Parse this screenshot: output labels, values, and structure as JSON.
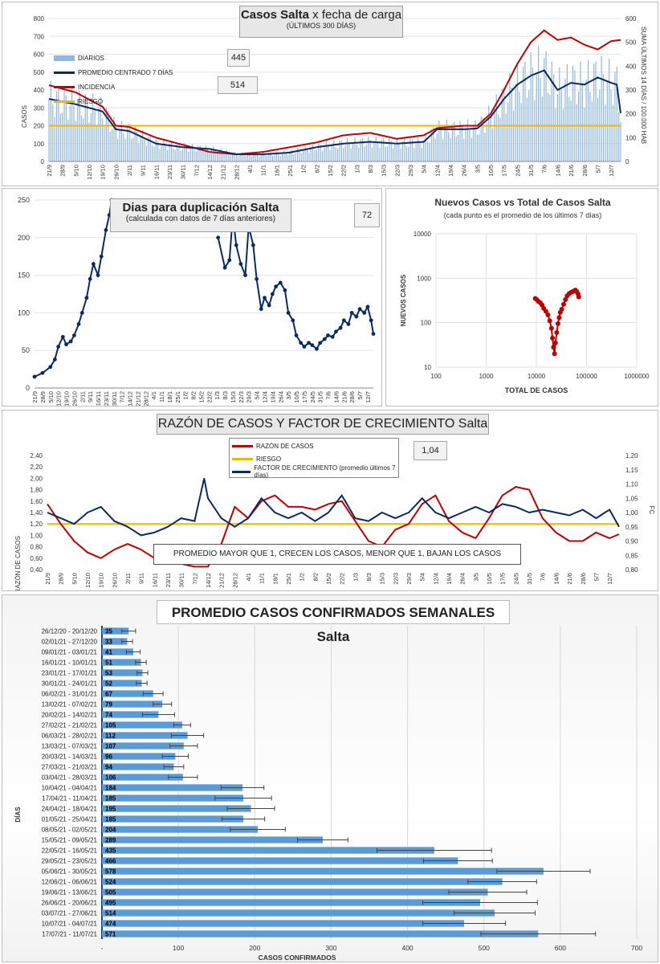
{
  "colors": {
    "bar_blue": "#8fb7e2",
    "navy": "#0b2a63",
    "red": "#c00000",
    "risk_yellow": "#f2b600",
    "week_bar": "#5b9bd5"
  },
  "daily": {
    "title_bold": "Casos Salta",
    "title_rest": "x fecha de carga",
    "subtitle": "(ÚLTIMOS 300 DÍAS)",
    "ylabel_left": "CASOS",
    "ylabel_right": "SUMA ÚLTIMOS 14 DÍAS / 100.000 HAB",
    "value_box_1": "445",
    "value_box_2": "514",
    "legend": [
      "DIARIOS",
      "PROMEDIO CENTRADO 7 DÍAS",
      "INCIDENCIA",
      "RIESGO"
    ],
    "left_ticks": [
      "0",
      "100",
      "200",
      "300",
      "400",
      "500",
      "600",
      "700",
      "800"
    ],
    "right_ticks": [
      "0",
      "100",
      "200",
      "300",
      "400",
      "500",
      "600"
    ],
    "x_ticks": [
      "21/9",
      "28/9",
      "5/10",
      "12/10",
      "19/10",
      "26/10",
      "2/11",
      "9/11",
      "16/11",
      "23/11",
      "30/11",
      "7/12",
      "14/12",
      "21/12",
      "28/12",
      "4/1",
      "11/1",
      "18/1",
      "25/1",
      "1/2",
      "8/2",
      "15/2",
      "22/2",
      "1/3",
      "8/3",
      "15/3",
      "22/3",
      "29/3",
      "5/4",
      "12/4",
      "19/4",
      "26/4",
      "3/5",
      "10/5",
      "17/5",
      "24/5",
      "31/5",
      "7/6",
      "14/6",
      "21/6",
      "28/6",
      "5/7",
      "12/7"
    ],
    "chart_data": {
      "type": "bar",
      "x_start": "21/9",
      "x_end": "17/7",
      "ylim_left": [
        0,
        800
      ],
      "ylim_right": [
        0,
        600
      ],
      "risk_level": 200,
      "avg_anchor_dates": [
        "21/9",
        "5/10",
        "19/10",
        "26/10",
        "2/11",
        "16/11",
        "30/11",
        "14/12",
        "28/12",
        "11/1",
        "25/1",
        "8/2",
        "22/2",
        "8/3",
        "22/3",
        "5/4",
        "12/4",
        "26/4",
        "3/5",
        "10/5",
        "17/5",
        "24/5",
        "31/5",
        "7/6",
        "14/6",
        "21/6",
        "28/6",
        "5/7",
        "12/7",
        "15/7",
        "17/7"
      ],
      "avg_anchor_values": [
        350,
        320,
        280,
        180,
        170,
        100,
        80,
        70,
        40,
        40,
        50,
        80,
        100,
        110,
        100,
        110,
        180,
        180,
        185,
        250,
        350,
        430,
        480,
        510,
        400,
        440,
        430,
        470,
        440,
        430,
        270
      ],
      "incidence_anchor_dates": [
        "21/9",
        "5/10",
        "19/10",
        "26/10",
        "2/11",
        "16/11",
        "30/11",
        "14/12",
        "28/12",
        "11/1",
        "25/1",
        "8/2",
        "22/2",
        "8/3",
        "22/3",
        "5/4",
        "12/4",
        "26/4",
        "3/5",
        "10/5",
        "17/5",
        "24/5",
        "31/5",
        "7/6",
        "14/6",
        "21/6",
        "28/6",
        "5/7",
        "12/7",
        "17/7"
      ],
      "incidence_anchor_values": [
        320,
        290,
        230,
        150,
        145,
        100,
        70,
        40,
        30,
        40,
        60,
        80,
        110,
        120,
        95,
        110,
        140,
        150,
        150,
        200,
        300,
        410,
        500,
        550,
        510,
        520,
        490,
        470,
        505,
        510
      ]
    }
  },
  "doubling": {
    "title": "Dias para duplicación Salta",
    "subtitle": "(calculada con datos de 7 días anteriores)",
    "value_box": "72",
    "y_ticks": [
      "0",
      "50",
      "100",
      "150",
      "200",
      "250"
    ],
    "x_ticks": [
      "21/9",
      "28/9",
      "5/10",
      "12/10",
      "19/10",
      "26/10",
      "2/11",
      "9/11",
      "16/11",
      "23/11",
      "30/11",
      "7/12",
      "14/12",
      "21/12",
      "28/12",
      "4/1",
      "11/1",
      "18/1",
      "25/1",
      "1/2",
      "8/2",
      "15/2",
      "22/2",
      "1/3",
      "8/3",
      "15/3",
      "22/3",
      "29/3",
      "5/4",
      "12/4",
      "19/4",
      "26/4",
      "3/5",
      "10/5",
      "17/5",
      "24/5",
      "31/5",
      "7/6",
      "14/6",
      "21/6",
      "28/6",
      "5/7",
      "12/7"
    ],
    "chart_data": {
      "type": "line",
      "ylim": [
        0,
        250
      ],
      "x_start": "21/9",
      "x_end": "17/7",
      "segment_1_dates": [
        "21/9",
        "28/9",
        "5/10",
        "9/10",
        "12/10",
        "16/10",
        "19/10",
        "23/10",
        "26/10",
        "30/10",
        "2/11",
        "6/11",
        "9/11",
        "12/11",
        "16/11",
        "19/11",
        "23/11",
        "26/11",
        "28/11"
      ],
      "segment_1_values": [
        15,
        20,
        28,
        38,
        55,
        68,
        58,
        62,
        70,
        85,
        100,
        120,
        145,
        165,
        150,
        175,
        210,
        230,
        250
      ],
      "segment_2_dates": [
        "2/3",
        "8/3",
        "12/3",
        "15/3",
        "18/3",
        "22/3",
        "26/3",
        "29/3",
        "2/4",
        "5/4",
        "9/4",
        "12/4",
        "16/4",
        "19/4",
        "22/4",
        "26/4",
        "30/4",
        "3/5",
        "7/5",
        "10/5",
        "14/5",
        "17/5",
        "21/5",
        "24/5",
        "28/5",
        "31/5",
        "4/6",
        "7/6",
        "11/6",
        "14/6",
        "18/6",
        "21/6",
        "25/6",
        "28/6",
        "2/7",
        "5/7",
        "9/7",
        "12/7",
        "15/7",
        "17/7"
      ],
      "segment_2_values": [
        200,
        160,
        170,
        230,
        190,
        165,
        150,
        215,
        190,
        145,
        105,
        120,
        110,
        125,
        135,
        140,
        130,
        100,
        90,
        70,
        60,
        55,
        60,
        57,
        52,
        60,
        65,
        70,
        68,
        75,
        80,
        90,
        85,
        100,
        95,
        105,
        100,
        108,
        90,
        72
      ]
    }
  },
  "scatter": {
    "title": "Nuevos Casos vs Total de Casos Salta",
    "subtitle": "(cada punto es el promedio de los últimos 7 días)",
    "ylabel": "NUEVOS CASOS",
    "xlabel": "TOTAL DE CASOS",
    "x_ticks": [
      "100",
      "1000",
      "10000",
      "100000",
      "1000000"
    ],
    "y_ticks": [
      "10",
      "100",
      "1000",
      "10000"
    ],
    "chart_data": {
      "type": "scatter",
      "xscale": "log",
      "yscale": "log",
      "xlim": [
        100,
        1000000
      ],
      "ylim": [
        10,
        10000
      ],
      "x": [
        9500,
        10200,
        11000,
        12000,
        13000,
        14000,
        15500,
        17000,
        18500,
        20000,
        21000,
        22000,
        23000,
        24000,
        25500,
        27000,
        28500,
        30000,
        32000,
        35000,
        38000,
        41000,
        45000,
        49000,
        53000,
        57000,
        60000,
        64000,
        68000,
        70000
      ],
      "y": [
        350,
        330,
        300,
        280,
        250,
        210,
        180,
        150,
        110,
        75,
        45,
        28,
        20,
        35,
        60,
        95,
        130,
        170,
        200,
        260,
        330,
        400,
        450,
        480,
        500,
        520,
        540,
        500,
        440,
        380
      ]
    }
  },
  "ratio": {
    "title_main": "RAZÓN DE CASOS Y FACTOR DE CRECIMIENTO",
    "title_tail": "Salta",
    "value_box": "1,04",
    "ylabel_left": "RAZÓN DE CASOS",
    "ylabel_right": "FC",
    "legend": [
      "RAZÓN DE CASOS",
      "RIESGO",
      "FACTOR DE CRECIMIENTO (promedio últimos 7 días)"
    ],
    "note": "PROMEDIO MAYOR QUE 1, CRECEN LOS CASOS, MENOR QUE 1, BAJAN LOS CASOS",
    "left_ticks": [
      "0,40",
      "0,60",
      "0,80",
      "1,00",
      "1,20",
      "1,40",
      "1,60",
      "1,80",
      "2,00",
      "2,20",
      "2,40"
    ],
    "right_ticks": [
      "0,80",
      "0,85",
      "0,90",
      "0,95",
      "1,00",
      "1,05",
      "1,10",
      "1,15",
      "1,20"
    ],
    "x_ticks": [
      "21/9",
      "28/9",
      "5/10",
      "12/10",
      "19/10",
      "26/10",
      "2/11",
      "9/11",
      "16/11",
      "23/11",
      "30/11",
      "7/12",
      "14/12",
      "21/12",
      "28/12",
      "4/1",
      "11/1",
      "18/1",
      "25/1",
      "1/2",
      "8/2",
      "15/2",
      "22/2",
      "1/3",
      "8/3",
      "15/3",
      "22/3",
      "29/3",
      "5/4",
      "12/4",
      "19/4",
      "26/4",
      "3/5",
      "10/5",
      "17/5",
      "24/5",
      "31/5",
      "7/6",
      "14/6",
      "21/6",
      "28/6",
      "5/7",
      "12/7"
    ],
    "chart_data": {
      "type": "line",
      "ylim_left": [
        0.4,
        2.4
      ],
      "ylim_right": [
        0.8,
        1.2
      ],
      "risk_level": 1.2,
      "ratio_anchor_dates": [
        "21/9",
        "28/9",
        "5/10",
        "12/10",
        "19/10",
        "26/10",
        "2/11",
        "9/11",
        "16/11",
        "23/11",
        "30/11",
        "7/12",
        "14/12",
        "21/12",
        "28/12",
        "4/1",
        "11/1",
        "18/1",
        "25/1",
        "1/2",
        "8/2",
        "15/2",
        "22/2",
        "1/3",
        "8/3",
        "15/3",
        "22/3",
        "29/3",
        "5/4",
        "12/4",
        "19/4",
        "26/4",
        "3/5",
        "10/5",
        "17/5",
        "24/5",
        "31/5",
        "7/6",
        "14/6",
        "21/6",
        "28/6",
        "5/7",
        "12/7",
        "17/7"
      ],
      "ratio_anchor_values": [
        1.55,
        1.2,
        0.9,
        0.7,
        0.6,
        0.75,
        0.85,
        0.75,
        0.6,
        0.55,
        0.5,
        0.45,
        0.45,
        0.85,
        1.5,
        1.3,
        1.6,
        1.7,
        1.5,
        1.5,
        1.45,
        1.55,
        1.6,
        1.25,
        0.9,
        0.8,
        1.1,
        1.2,
        1.55,
        1.7,
        1.25,
        1.05,
        0.95,
        1.3,
        1.7,
        1.85,
        1.8,
        1.3,
        1.05,
        0.9,
        0.9,
        1.05,
        0.95,
        1.02
      ],
      "fc_anchor_dates": [
        "21/9",
        "28/9",
        "5/10",
        "12/10",
        "19/10",
        "26/10",
        "2/11",
        "9/11",
        "16/11",
        "23/11",
        "30/11",
        "7/12",
        "12/12",
        "14/12",
        "21/12",
        "28/12",
        "4/1",
        "11/1",
        "18/1",
        "25/1",
        "1/2",
        "8/2",
        "15/2",
        "22/2",
        "1/3",
        "8/3",
        "15/3",
        "22/3",
        "29/3",
        "5/4",
        "12/4",
        "19/4",
        "26/4",
        "3/5",
        "10/5",
        "17/5",
        "24/5",
        "31/5",
        "7/6",
        "14/6",
        "21/6",
        "28/6",
        "5/7",
        "12/7",
        "17/7"
      ],
      "fc_anchor_values": [
        1.0,
        0.98,
        0.96,
        1.0,
        1.02,
        0.97,
        0.95,
        0.92,
        0.93,
        0.95,
        0.98,
        0.97,
        1.12,
        1.05,
        0.98,
        0.95,
        0.98,
        1.05,
        1.0,
        0.98,
        1.0,
        0.97,
        1.0,
        1.06,
        0.98,
        0.97,
        1.0,
        0.98,
        1.0,
        1.05,
        1.0,
        0.98,
        1.0,
        1.02,
        1.0,
        1.03,
        1.02,
        1.0,
        1.01,
        1.0,
        0.99,
        1.01,
        0.98,
        1.01,
        0.95
      ]
    }
  },
  "weekly": {
    "title": "PROMEDIO CASOS CONFIRMADOS SEMANALES Salta",
    "ylabel": "DÍAS",
    "xlabel": "CASOS CONFIRMADOS",
    "x_ticks": [
      "-",
      "100",
      "200",
      "300",
      "400",
      "500",
      "600",
      "700"
    ],
    "chart_data": {
      "type": "bar",
      "orientation": "horizontal",
      "xlim": [
        0,
        700
      ],
      "categories": [
        "26/12/20 - 20/12/20",
        "02/01/21 - 27/12/20",
        "09/01/21 - 03/01/21",
        "16/01/21 - 10/01/21",
        "23/01/21 - 17/01/21",
        "30/01/21 - 24/01/21",
        "06/02/21 - 31/01/21",
        "13/02/21 - 07/02/21",
        "20/02/21 - 14/02/21",
        "27/02/21 - 21/02/21",
        "06/03/21 - 28/02/21",
        "13/03/21 - 07/03/21",
        "20/03/21 - 14/03/21",
        "27/03/21 - 21/03/21",
        "03/04/21 - 28/03/21",
        "10/04/21 - 04/04/21",
        "17/04/21 - 11/04/21",
        "24/04/21 - 18/04/21",
        "01/05/21 - 25/04/21",
        "08/05/21 - 02/05/21",
        "15/05/21 - 09/05/21",
        "22/05/21 - 16/05/21",
        "29/05/21 - 23/05/21",
        "05/06/21 - 30/05/21",
        "12/06/21 - 06/06/21",
        "19/06/21 - 13/06/21",
        "26/06/21 - 20/06/21",
        "03/07/21 - 27/06/21",
        "10/07/21 - 04/07/21",
        "17/07/21 - 11/07/21"
      ],
      "values": [
        35,
        33,
        41,
        51,
        53,
        52,
        67,
        79,
        74,
        105,
        112,
        107,
        96,
        94,
        106,
        184,
        185,
        195,
        185,
        204,
        289,
        435,
        466,
        578,
        524,
        505,
        495,
        514,
        474,
        571
      ],
      "value_labels": [
        "35",
        "33",
        "41",
        "51",
        "53",
        "52",
        "67",
        "79",
        "74",
        "105",
        "112",
        "107",
        "96",
        "94",
        "106",
        "184",
        "185",
        "195",
        "185",
        "204",
        "289",
        "435",
        "466",
        "578",
        "524",
        "505",
        "495",
        "514",
        "474",
        "571"
      ],
      "error": [
        9,
        7,
        9,
        7,
        7,
        7,
        13,
        12,
        21,
        11,
        21,
        18,
        17,
        13,
        19,
        28,
        37,
        31,
        28,
        36,
        33,
        75,
        45,
        61,
        45,
        51,
        75,
        53,
        54,
        75
      ]
    }
  }
}
